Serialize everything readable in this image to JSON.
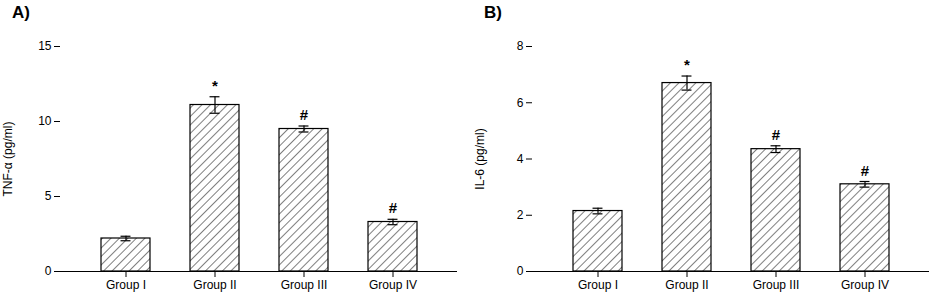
{
  "chart_data": [
    {
      "type": "bar",
      "title": "A)",
      "categories": [
        "Group I",
        "Group II",
        "Group III",
        "Group IV"
      ],
      "values": [
        2.2,
        11.1,
        9.5,
        3.3
      ],
      "errors": [
        0.15,
        0.55,
        0.2,
        0.18
      ],
      "ylabel": "TNF-α (pg/ml)",
      "ylim": [
        0,
        15
      ],
      "yticks": [
        0,
        5,
        10,
        15
      ],
      "annotations": [
        {
          "category": "Group II",
          "text": "*"
        },
        {
          "category": "Group III",
          "text": "#"
        },
        {
          "category": "Group IV",
          "text": "#"
        }
      ],
      "color": "#ffffff",
      "grid": false
    },
    {
      "type": "bar",
      "title": "B)",
      "categories": [
        "Group I",
        "Group II",
        "Group III",
        "Group IV"
      ],
      "values": [
        2.15,
        6.7,
        4.35,
        3.1
      ],
      "errors": [
        0.1,
        0.25,
        0.12,
        0.1
      ],
      "ylabel": "IL-6 (pg/ml)",
      "ylim": [
        0,
        8
      ],
      "yticks": [
        0,
        2,
        4,
        6,
        8
      ],
      "annotations": [
        {
          "category": "Group II",
          "text": "*"
        },
        {
          "category": "Group III",
          "text": "#"
        },
        {
          "category": "Group IV",
          "text": "#"
        }
      ],
      "color": "#ffffff",
      "grid": false
    }
  ]
}
